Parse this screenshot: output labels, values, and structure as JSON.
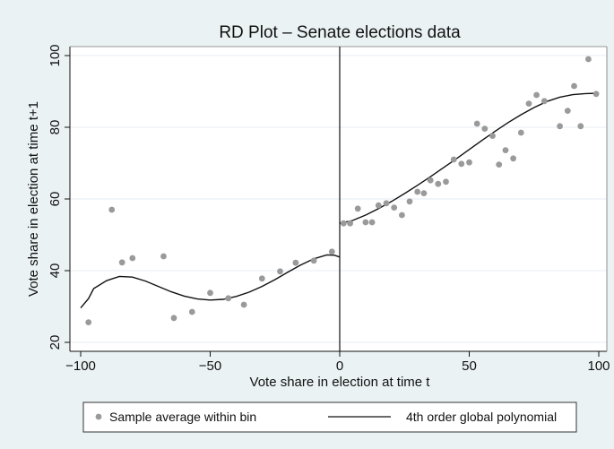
{
  "chart_data": {
    "type": "scatter",
    "title": "RD Plot – Senate elections data",
    "xlabel": "Vote share in election at time t",
    "ylabel": "Vote share in election at time t+1",
    "xlim": [
      -100,
      100
    ],
    "ylim": [
      20,
      100
    ],
    "xticks": [
      -100,
      -50,
      0,
      50,
      100
    ],
    "yticks": [
      20,
      40,
      60,
      80,
      100
    ],
    "cutoff": 0,
    "grid": "horizontal",
    "legend_position": "bottom",
    "series": [
      {
        "name": "Sample average within bin",
        "kind": "points",
        "color": "#9a9a9a",
        "points": [
          [
            -97,
            25.6
          ],
          [
            -88,
            57
          ],
          [
            -84,
            42.3
          ],
          [
            -80,
            43.5
          ],
          [
            -68,
            44
          ],
          [
            -64,
            26.8
          ],
          [
            -57,
            28.5
          ],
          [
            -50,
            33.8
          ],
          [
            -43,
            32.3
          ],
          [
            -37,
            30.5
          ],
          [
            -30,
            37.8
          ],
          [
            -23,
            39.8
          ],
          [
            -17,
            42.2
          ],
          [
            -10,
            42.8
          ],
          [
            -3,
            45.3
          ],
          [
            1.5,
            53.2
          ],
          [
            4,
            53.2
          ],
          [
            7,
            57.3
          ],
          [
            10,
            53.5
          ],
          [
            12.5,
            53.5
          ],
          [
            15,
            58.2
          ],
          [
            18,
            58.8
          ],
          [
            21,
            57.6
          ],
          [
            24,
            55.5
          ],
          [
            27,
            59.3
          ],
          [
            30,
            62
          ],
          [
            32.5,
            61.6
          ],
          [
            35,
            65.2
          ],
          [
            38,
            64.2
          ],
          [
            41,
            64.8
          ],
          [
            44,
            71
          ],
          [
            47,
            69.8
          ],
          [
            50,
            70.2
          ],
          [
            53,
            81
          ],
          [
            56,
            79.6
          ],
          [
            59,
            77.6
          ],
          [
            61.5,
            69.6
          ],
          [
            64,
            73.6
          ],
          [
            67,
            71.3
          ],
          [
            70,
            78.5
          ],
          [
            73,
            86.6
          ],
          [
            76,
            89
          ],
          [
            79,
            87.3
          ],
          [
            85,
            80.3
          ],
          [
            88,
            84.6
          ],
          [
            90.5,
            91.5
          ],
          [
            93,
            80.3
          ],
          [
            96,
            99
          ],
          [
            99,
            89.3
          ]
        ]
      },
      {
        "name": "4th order global polynomial",
        "kind": "line",
        "color": "#111111",
        "segments": [
          [
            [
              -100,
              29.6
            ],
            [
              -97,
              32.2
            ],
            [
              -95,
              35.0
            ],
            [
              -90,
              37.2
            ],
            [
              -85,
              38.4
            ],
            [
              -80,
              38.2
            ],
            [
              -75,
              37.1
            ],
            [
              -70,
              35.6
            ],
            [
              -65,
              34.1
            ],
            [
              -60,
              32.9
            ],
            [
              -55,
              32.1
            ],
            [
              -50,
              31.8
            ],
            [
              -45,
              32.0
            ],
            [
              -40,
              32.8
            ],
            [
              -35,
              34.0
            ],
            [
              -30,
              35.6
            ],
            [
              -25,
              37.5
            ],
            [
              -20,
              39.6
            ],
            [
              -15,
              41.6
            ],
            [
              -10,
              43.3
            ],
            [
              -5,
              44.4
            ],
            [
              -2,
              44.3
            ],
            [
              0,
              43.8
            ]
          ],
          [
            [
              0,
              53.2
            ],
            [
              5,
              54.0
            ],
            [
              10,
              55.5
            ],
            [
              15,
              57.3
            ],
            [
              20,
              59.3
            ],
            [
              25,
              61.5
            ],
            [
              30,
              63.8
            ],
            [
              35,
              66.2
            ],
            [
              40,
              68.7
            ],
            [
              45,
              71.2
            ],
            [
              50,
              73.8
            ],
            [
              55,
              76.4
            ],
            [
              60,
              78.9
            ],
            [
              65,
              81.3
            ],
            [
              70,
              83.5
            ],
            [
              75,
              85.5
            ],
            [
              80,
              87.2
            ],
            [
              85,
              88.4
            ],
            [
              90,
              89.1
            ],
            [
              95,
              89.4
            ],
            [
              100,
              89.5
            ]
          ]
        ]
      }
    ]
  }
}
